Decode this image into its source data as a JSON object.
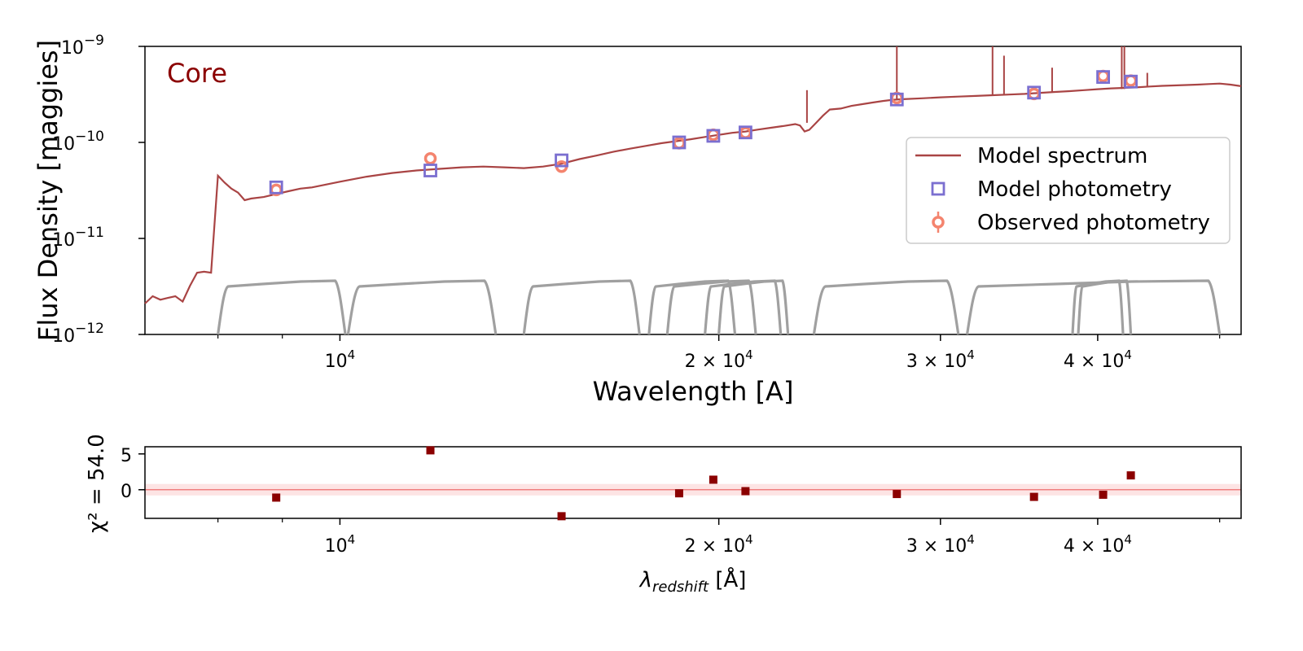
{
  "chart_data": [
    {
      "type": "line",
      "annotation": "Core",
      "annotation_color": "#8b0000",
      "xlabel": "Wavelength [A]",
      "ylabel": "Flux Density [maggies]",
      "xscale": "log",
      "yscale": "log",
      "xlim": [
        7000,
        52000
      ],
      "ylim": [
        1e-12,
        1e-09
      ],
      "grid": false,
      "legend_position": "center-right",
      "x_ticks": [
        {
          "value": 10000,
          "base": "10",
          "exp": "4"
        },
        {
          "value": 20000,
          "base": "2 × 10",
          "exp": "4"
        },
        {
          "value": 30000,
          "base": "3 × 10",
          "exp": "4"
        },
        {
          "value": 40000,
          "base": "4 × 10",
          "exp": "4"
        }
      ],
      "y_ticks": [
        {
          "value": 1e-09,
          "base": "10",
          "exp": "−9"
        },
        {
          "value": 1e-10,
          "base": "10",
          "exp": "−10"
        },
        {
          "value": 1e-11,
          "base": "10",
          "exp": "−11"
        },
        {
          "value": 1e-12,
          "base": "10",
          "exp": "−12"
        }
      ],
      "legend": [
        {
          "label": "Model spectrum",
          "marker": "line",
          "color": "#a94444"
        },
        {
          "label": "Model photometry",
          "marker": "square",
          "color": "#7b6fd0"
        },
        {
          "label": "Observed photometry",
          "marker": "circle-errorbar",
          "color": "#f4846e"
        }
      ],
      "series": [
        {
          "name": "Model spectrum",
          "color": "#a94444",
          "x": [
            7000,
            7100,
            7200,
            7300,
            7400,
            7500,
            7600,
            7700,
            7800,
            7900,
            8000,
            8100,
            8200,
            8300,
            8400,
            8500,
            8700,
            8900,
            9100,
            9300,
            9500,
            10000,
            10500,
            11000,
            11500,
            12000,
            12500,
            13000,
            13500,
            14000,
            14500,
            15000,
            15500,
            16000,
            16500,
            17000,
            17500,
            18000,
            18500,
            19000,
            19500,
            20000,
            20500,
            21000,
            21500,
            22000,
            22500,
            23000,
            23200,
            23400,
            23600,
            23900,
            24200,
            24500,
            25000,
            25500,
            26000,
            26500,
            27000,
            27500,
            28000,
            29000,
            30000,
            31000,
            32000,
            33000,
            34000,
            35000,
            36000,
            37000,
            38000,
            39000,
            40000,
            41000,
            42000,
            43000,
            44000,
            45000,
            46000,
            47000,
            48000,
            49000,
            50000,
            51000,
            52000
          ],
          "y": [
            2.1e-12,
            2.5e-12,
            2.3e-12,
            2.4e-12,
            2.5e-12,
            2.2e-12,
            3.2e-12,
            4.4e-12,
            4.5e-12,
            4.4e-12,
            4.5e-11,
            3.8e-11,
            3.3e-11,
            3e-11,
            2.5e-11,
            2.6e-11,
            2.7e-11,
            2.9e-11,
            3.1e-11,
            3.3e-11,
            3.4e-11,
            3.9e-11,
            4.4e-11,
            4.8e-11,
            5.1e-11,
            5.3e-11,
            5.5e-11,
            5.6e-11,
            5.5e-11,
            5.4e-11,
            5.6e-11,
            6e-11,
            6.7e-11,
            7.3e-11,
            8e-11,
            8.6e-11,
            9.2e-11,
            9.8e-11,
            1.03e-10,
            1.08e-10,
            1.14e-10,
            1.2e-10,
            1.26e-10,
            1.3e-10,
            1.36e-10,
            1.42e-10,
            1.48e-10,
            1.55e-10,
            1.5e-10,
            1.3e-10,
            1.35e-10,
            1.6e-10,
            1.9e-10,
            2.2e-10,
            2.25e-10,
            2.4e-10,
            2.5e-10,
            2.6e-10,
            2.7e-10,
            2.78e-10,
            2.82e-10,
            2.88e-10,
            2.95e-10,
            3e-10,
            3.05e-10,
            3.1e-10,
            3.15e-10,
            3.2e-10,
            3.28e-10,
            3.35e-10,
            3.42e-10,
            3.5e-10,
            3.58e-10,
            3.65e-10,
            3.7e-10,
            3.75e-10,
            3.82e-10,
            3.88e-10,
            3.92e-10,
            3.96e-10,
            4e-10,
            4.05e-10,
            4.1e-10,
            4e-10,
            3.85e-10
          ]
        },
        {
          "name": "Model photometry",
          "color": "#7b6fd0",
          "x": [
            8900,
            11800,
            15000,
            18600,
            19800,
            21000,
            27700,
            35600,
            40400,
            42500
          ],
          "y": [
            3.4e-11,
            5.1e-11,
            6.5e-11,
            1e-10,
            1.17e-10,
            1.27e-10,
            2.8e-10,
            3.3e-10,
            4.8e-10,
            4.3e-10
          ]
        },
        {
          "name": "Observed photometry",
          "color": "#f4846e",
          "x": [
            8900,
            11800,
            15000,
            18600,
            19800,
            21000,
            27700,
            35600,
            40400,
            42500
          ],
          "y": [
            3.2e-11,
            6.8e-11,
            5.6e-11,
            9.8e-11,
            1.2e-10,
            1.26e-10,
            2.9e-10,
            3.2e-10,
            4.9e-10,
            4.4e-10
          ]
        }
      ]
    },
    {
      "type": "scatter",
      "xlabel_symbol": "λ",
      "xlabel_sub": "redshift",
      "xlabel_unit": "[Å]",
      "ylabel": "χ² = 54.0",
      "xscale": "log",
      "xlim": [
        7000,
        52000
      ],
      "ylim": [
        -4,
        6
      ],
      "y_ticks": [
        5,
        0
      ],
      "series": [
        {
          "name": "Residual",
          "color": "#8b0000",
          "x": [
            8900,
            11800,
            15000,
            18600,
            19800,
            21000,
            27700,
            35600,
            40400,
            42500
          ],
          "y": [
            -1.1,
            5.5,
            -3.7,
            -0.5,
            1.4,
            -0.2,
            -0.6,
            -1.0,
            -0.7,
            2.0
          ]
        }
      ],
      "reference_line": {
        "y": 0,
        "color": "#f08080",
        "band": [
          -0.8,
          0.8
        ]
      }
    }
  ]
}
